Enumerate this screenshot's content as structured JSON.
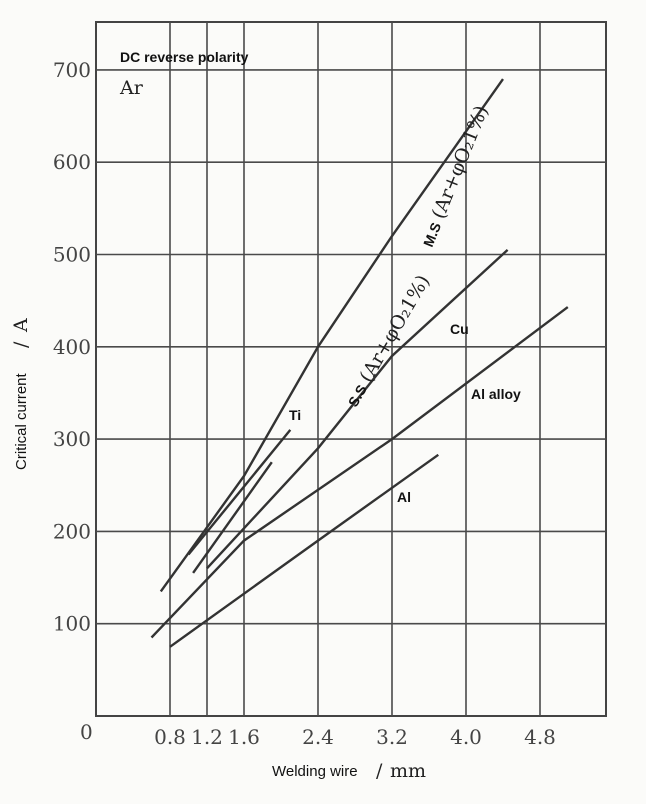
{
  "chart_data": {
    "type": "line",
    "annotations": {
      "mode": "DC reverse polarity",
      "gas": "Ar"
    },
    "xlabel": {
      "text": "Welding wire",
      "unit": "mm"
    },
    "ylabel": {
      "text": "Critical current",
      "unit": "A"
    },
    "xlim": [
      0,
      5.5
    ],
    "ylim": [
      0,
      750
    ],
    "x_ticks": [
      0.8,
      1.2,
      1.6,
      2.4,
      3.2,
      4.0,
      4.8
    ],
    "x_tick_labels": [
      "0.8",
      "1.2",
      "1.6",
      "2.4",
      "3.2",
      "4.0",
      "4.8"
    ],
    "y_ticks": [
      100,
      200,
      300,
      400,
      500,
      600,
      700
    ],
    "y_tick_labels": [
      "100",
      "200",
      "300",
      "400",
      "500",
      "600",
      "700"
    ],
    "origin_label": "0",
    "grid": true,
    "series": [
      {
        "name_prefix": "M.S",
        "name_suffix": "(Ar+φO₂1%)",
        "x": [
          0.7,
          1.6,
          2.4,
          3.2,
          4.4
        ],
        "y": [
          135,
          260,
          400,
          520,
          690
        ]
      },
      {
        "name_prefix": "S.S",
        "name_suffix": "(Ar+φO₂1%)",
        "x": [
          1.2,
          2.4,
          3.2,
          4.45
        ],
        "y": [
          160,
          290,
          390,
          505
        ]
      },
      {
        "name": "Ti",
        "x": [
          1.0,
          2.1
        ],
        "y": [
          175,
          310
        ]
      },
      {
        "name": "Cu",
        "x": [
          1.05,
          1.9
        ],
        "y": [
          155,
          275
        ]
      },
      {
        "name": "Al alloy",
        "x": [
          0.6,
          1.6,
          3.2,
          5.1
        ],
        "y": [
          85,
          190,
          300,
          443
        ]
      },
      {
        "name": "Al",
        "x": [
          0.8,
          2.4,
          3.7
        ],
        "y": [
          75,
          190,
          283
        ]
      }
    ]
  }
}
